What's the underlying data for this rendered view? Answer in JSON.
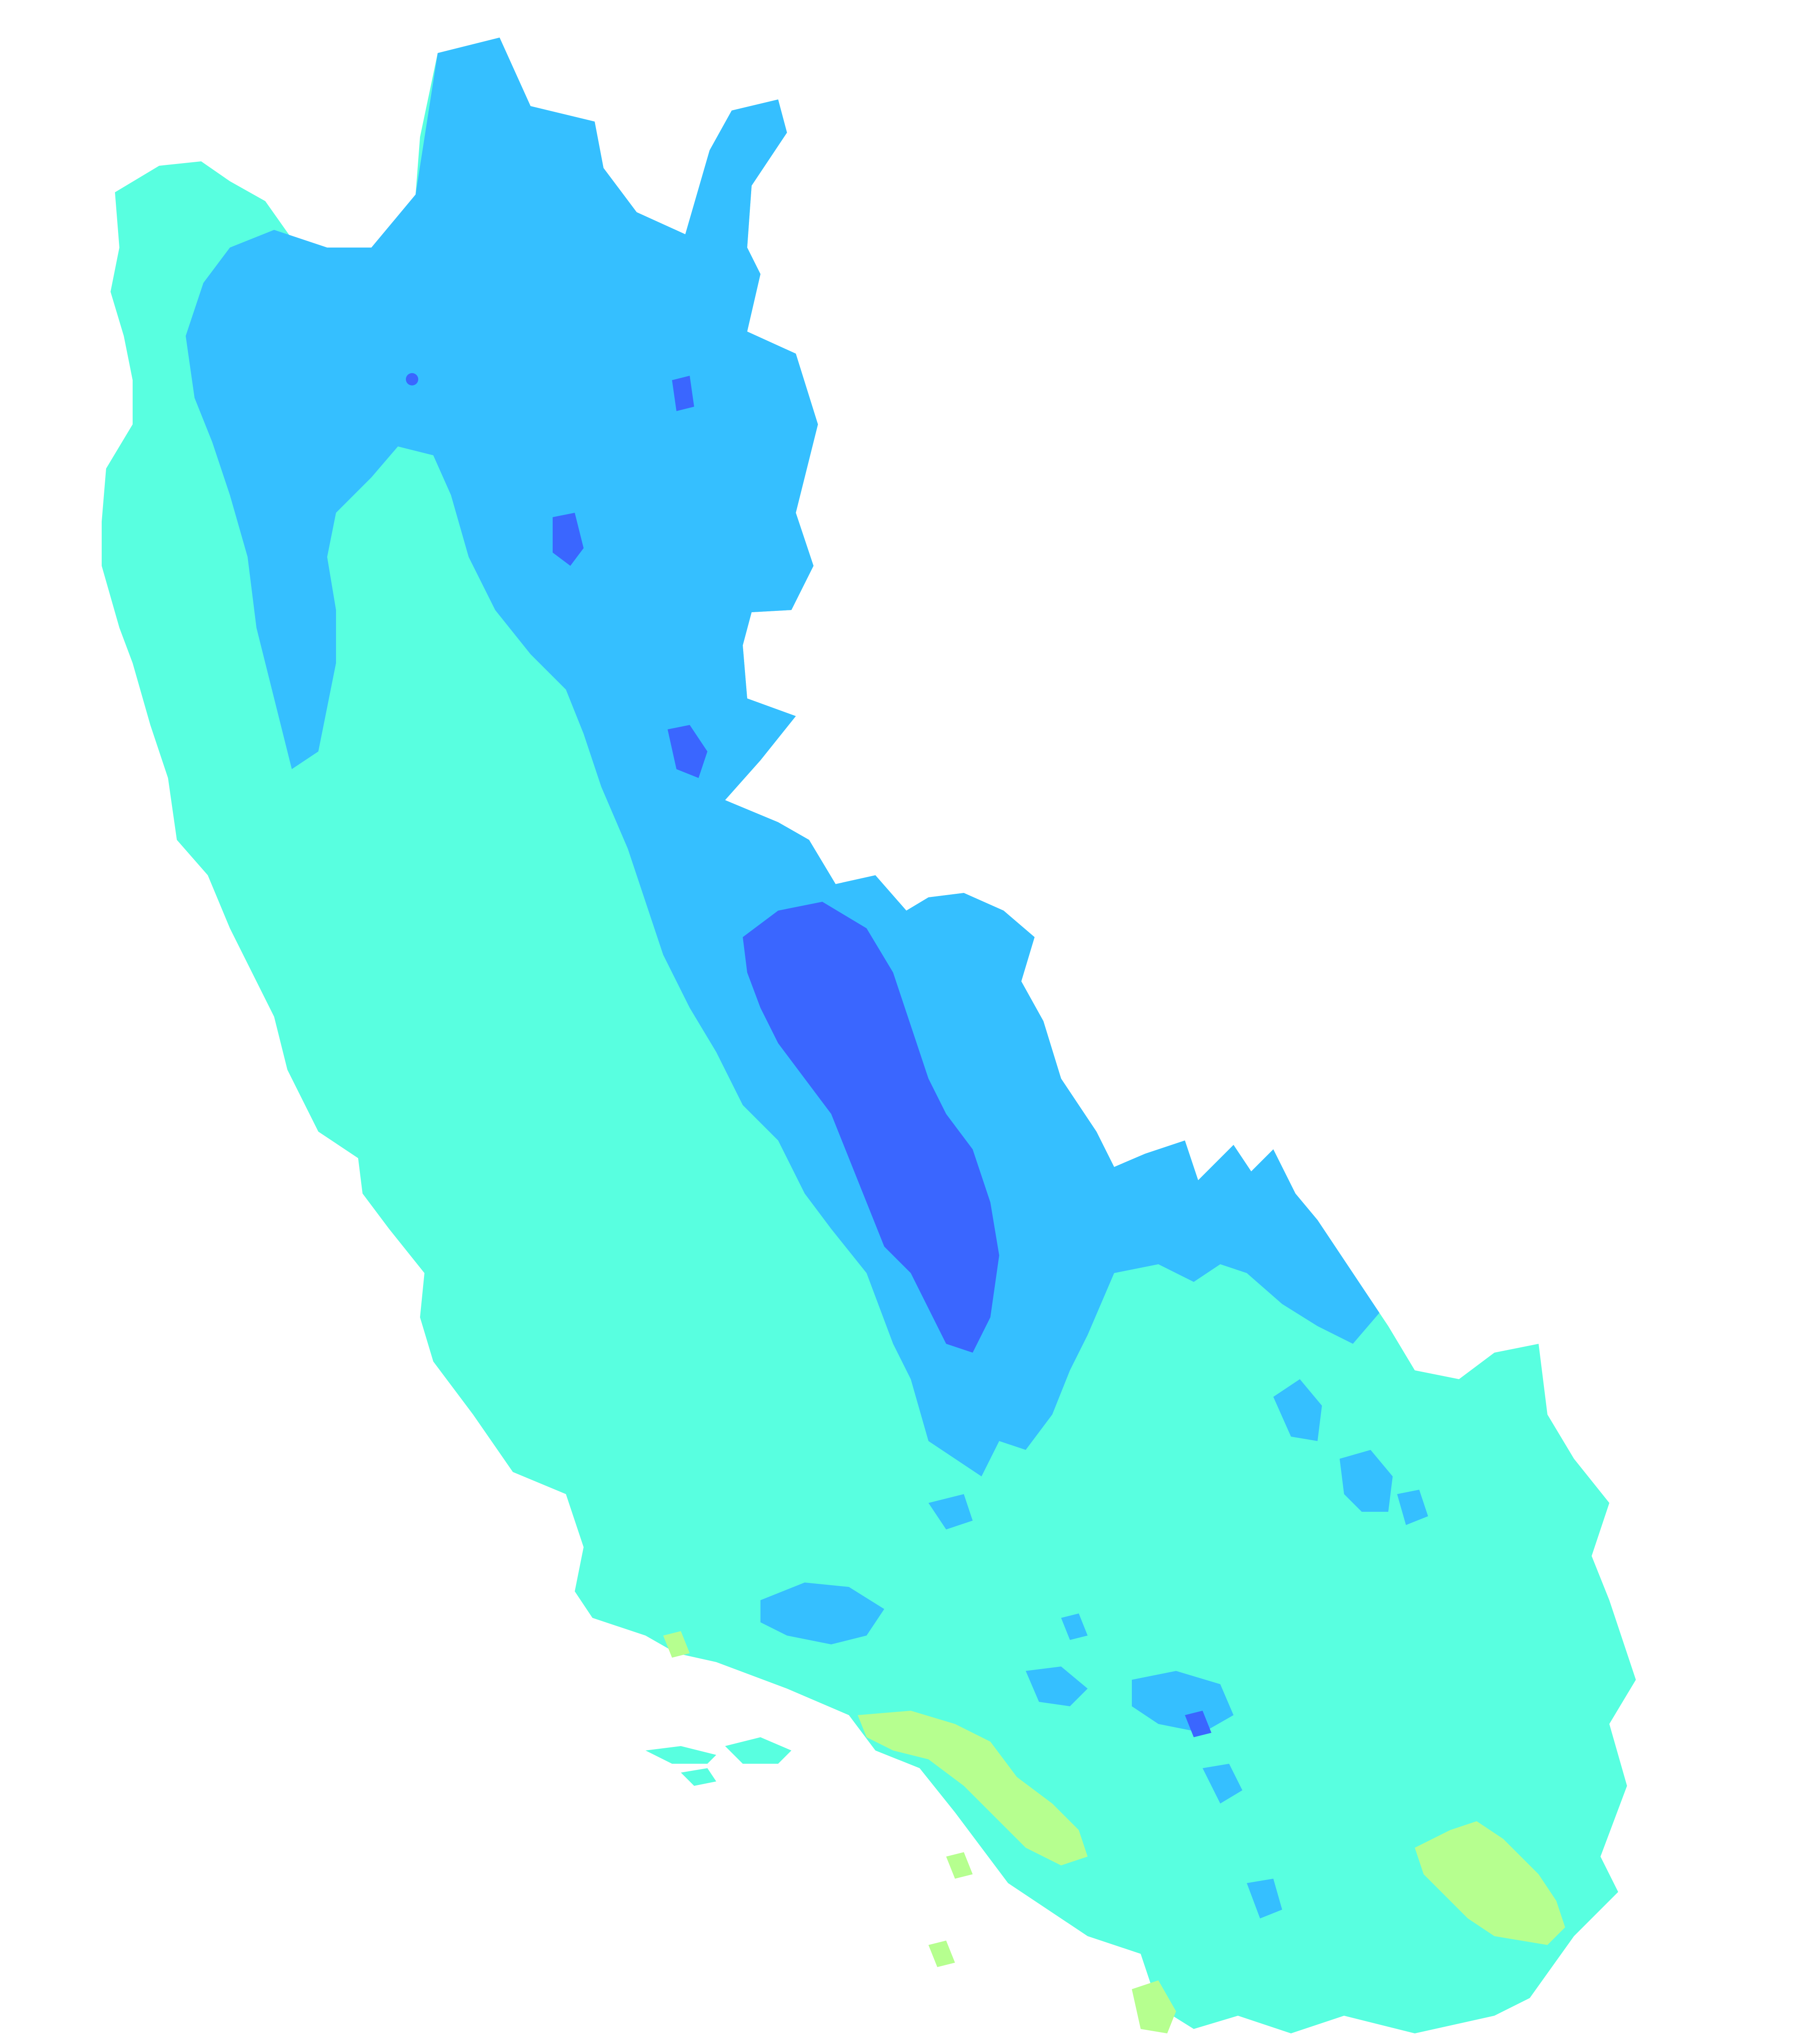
{
  "map": {
    "type": "choropleth-raster",
    "legend": [],
    "classes": [
      {
        "id": "class-1",
        "color": "#3a66ff"
      },
      {
        "id": "class-2",
        "color": "#35bfff"
      },
      {
        "id": "class-3",
        "color": "#58ffe0"
      },
      {
        "id": "class-4",
        "color": "#b6ff8f"
      }
    ],
    "background": "#ffffff"
  }
}
